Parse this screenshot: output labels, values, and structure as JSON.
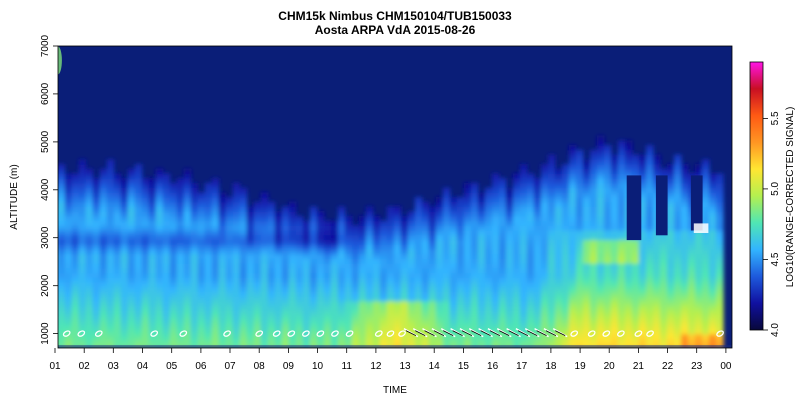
{
  "chart_data": {
    "type": "heatmap",
    "title": "CHM15k Nimbus CHM150104/TUB150033",
    "subtitle": "Aosta ARPA VdA 2015-08-26",
    "xlabel": "TIME",
    "ylabel": "ALTITUDE (m)",
    "colorbar_label": "LOG10(RANGE-CORRECTED SIGNAL)",
    "x_ticks": [
      "01",
      "02",
      "03",
      "04",
      "05",
      "06",
      "07",
      "08",
      "09",
      "10",
      "11",
      "12",
      "13",
      "14",
      "15",
      "16",
      "17",
      "18",
      "19",
      "20",
      "21",
      "22",
      "23",
      "00"
    ],
    "y_ticks": [
      "1000",
      "2000",
      "3000",
      "4000",
      "5000",
      "6000",
      "7000"
    ],
    "ylim": [
      700,
      7000
    ],
    "colorbar_ticks": [
      "4.0",
      "4.5",
      "5.0",
      "5.5"
    ],
    "colorbar_range": [
      4.0,
      5.9
    ],
    "colormap": [
      "#08083a",
      "#1010a0",
      "#1e5adc",
      "#32b4ff",
      "#50e6b4",
      "#b4f050",
      "#ffe632",
      "#ff9623",
      "#ff5a14",
      "#c80f23",
      "#ff14e6"
    ],
    "background_color": "#0a1e78"
  }
}
